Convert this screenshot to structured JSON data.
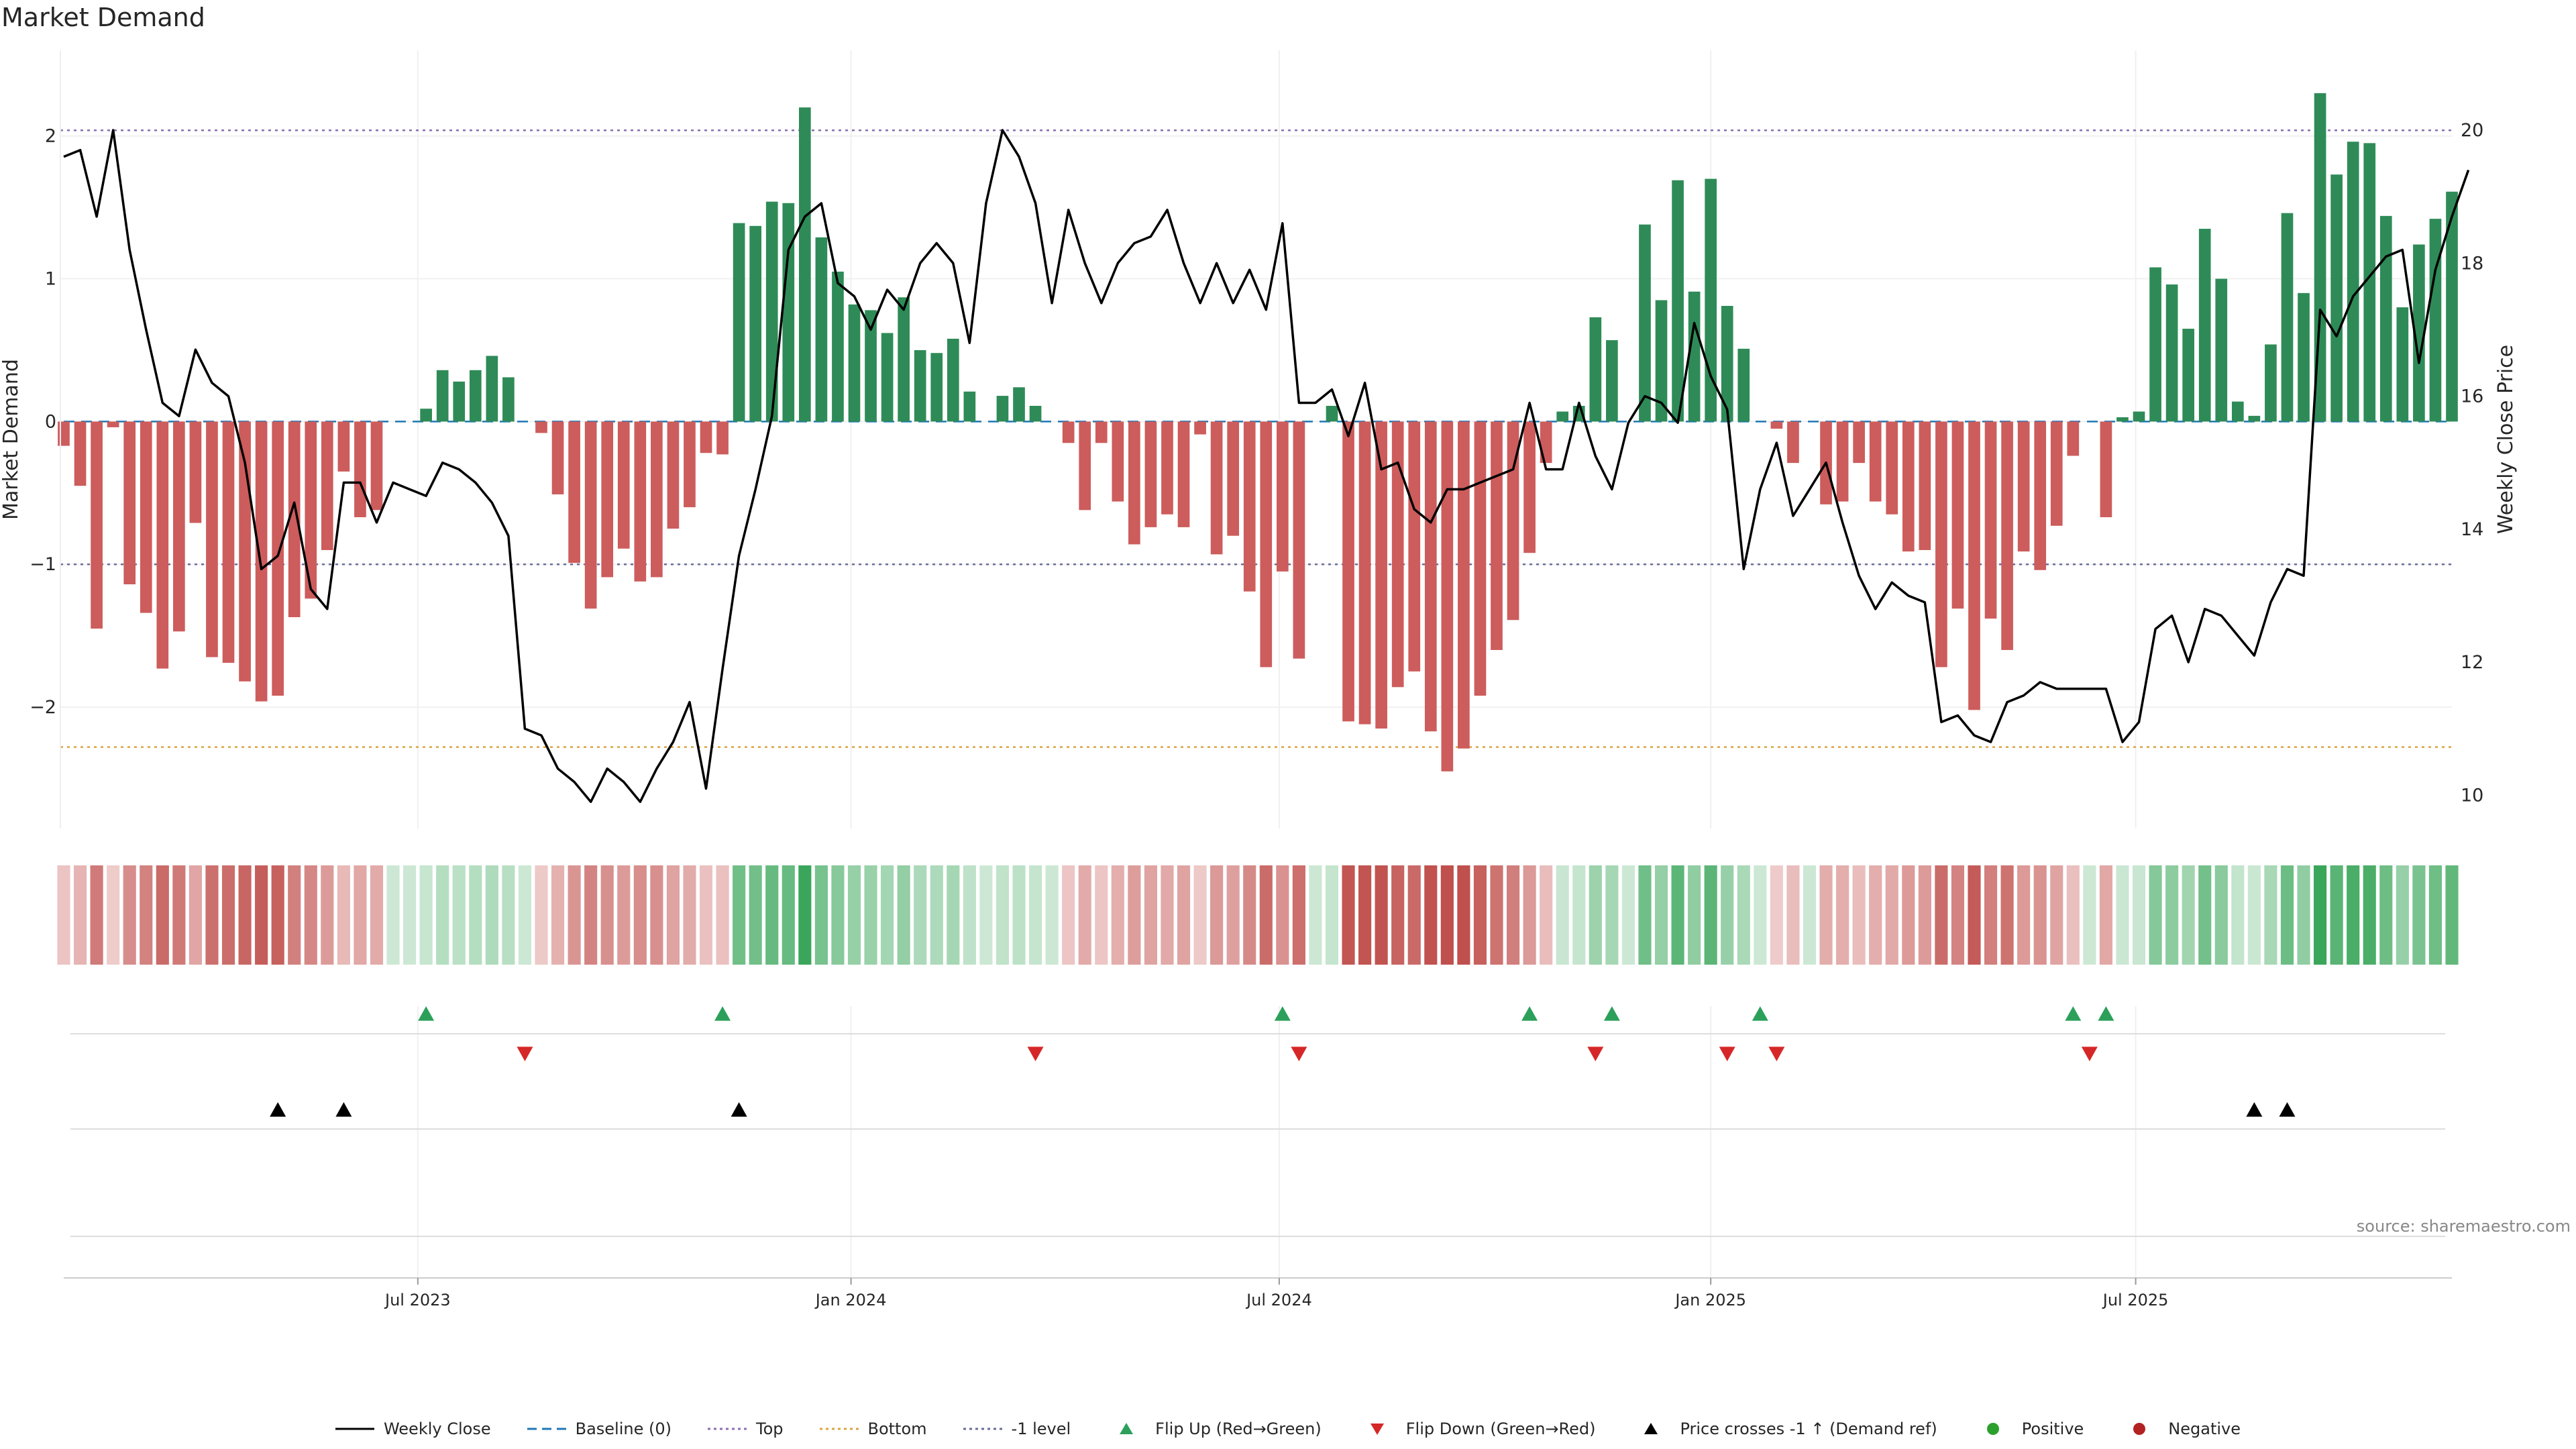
{
  "chart_data": {
    "type": "bar",
    "title": "Market Demand",
    "ylabel": "Market Demand",
    "y2label": "Weekly Close Price",
    "ylim": [
      -2.85,
      2.6
    ],
    "y2lim": [
      9.5,
      21.2
    ],
    "yticks": [
      -2,
      -1,
      0,
      1,
      2
    ],
    "yticklabels": [
      "−2",
      "−1",
      "0",
      "1",
      "2"
    ],
    "y2ticks": [
      10,
      12,
      14,
      16,
      18,
      20
    ],
    "xticks": [
      {
        "index": 21.5,
        "label": "Jul 2023"
      },
      {
        "index": 47.8,
        "label": "Jan 2024"
      },
      {
        "index": 73.8,
        "label": "Jul 2024"
      },
      {
        "index": 100.0,
        "label": "Jan 2025"
      },
      {
        "index": 125.8,
        "label": "Jul 2025"
      }
    ],
    "reference_lines": {
      "top": 2.04,
      "bottom": -2.28,
      "minus_one": -1.0,
      "baseline": 0
    },
    "colors": {
      "positive_bar": "#2e8b57",
      "negative_bar": "#cd5c5c",
      "price_line": "#000000",
      "top_line": "#8a6fb0",
      "bottom_line": "#d9a441",
      "minus_one_line": "#6b6b9a",
      "baseline": "#1f77b4",
      "flip_up": "#2ca05a",
      "flip_down": "#d62728",
      "cross_marker": "#000000",
      "positive_dot": "#2ca02c",
      "negative_dot": "#b22222"
    },
    "demand": [
      -0.17,
      -0.45,
      -1.45,
      -0.04,
      -1.14,
      -1.34,
      -1.73,
      -1.47,
      -0.71,
      -1.65,
      -1.69,
      -1.82,
      -1.96,
      -1.92,
      -1.37,
      -1.24,
      -0.9,
      -0.35,
      -0.67,
      -0.62,
      0.0,
      0.0,
      0.09,
      0.36,
      0.28,
      0.36,
      0.46,
      0.31,
      0.0,
      -0.08,
      -0.51,
      -0.99,
      -1.31,
      -1.09,
      -0.89,
      -1.12,
      -1.09,
      -0.75,
      -0.6,
      -0.22,
      -0.23,
      1.39,
      1.37,
      1.54,
      1.53,
      2.2,
      1.29,
      1.05,
      0.82,
      0.78,
      0.62,
      0.87,
      0.5,
      0.48,
      0.58,
      0.21,
      0.0,
      0.18,
      0.24,
      0.11,
      0.0,
      -0.15,
      -0.62,
      -0.15,
      -0.56,
      -0.86,
      -0.74,
      -0.65,
      -0.74,
      -0.09,
      -0.93,
      -0.8,
      -1.19,
      -1.72,
      -1.05,
      -1.66,
      0.0,
      0.11,
      -2.1,
      -2.12,
      -2.15,
      -1.86,
      -1.75,
      -2.17,
      -2.45,
      -2.29,
      -1.92,
      -1.6,
      -1.39,
      -0.92,
      -0.29,
      0.07,
      0.11,
      0.73,
      0.57,
      0.0,
      1.38,
      0.85,
      1.69,
      0.91,
      1.7,
      0.81,
      0.51,
      0.0,
      -0.05,
      -0.29,
      0.0,
      -0.58,
      -0.56,
      -0.29,
      -0.56,
      -0.65,
      -0.91,
      -0.9,
      -1.72,
      -1.31,
      -2.02,
      -1.38,
      -1.6,
      -0.91,
      -1.04,
      -0.73,
      -0.24,
      0.0,
      -0.67,
      0.03,
      0.07,
      1.08,
      0.96,
      0.65,
      1.35,
      1.0,
      0.14,
      0.04,
      0.54,
      1.46,
      0.9,
      2.3,
      1.73,
      1.96,
      1.95,
      1.44,
      0.8,
      1.24,
      1.42,
      1.61
    ],
    "price": [
      19.6,
      19.7,
      18.7,
      20.0,
      18.2,
      17.0,
      15.9,
      15.7,
      16.7,
      16.2,
      16.0,
      15.0,
      13.4,
      13.6,
      14.4,
      13.1,
      12.8,
      14.7,
      14.7,
      14.1,
      14.7,
      14.6,
      14.5,
      15.0,
      14.9,
      14.7,
      14.4,
      13.9,
      11.0,
      10.9,
      10.4,
      10.2,
      9.9,
      10.4,
      10.2,
      9.9,
      10.4,
      10.8,
      11.4,
      10.1,
      11.9,
      13.6,
      14.6,
      15.7,
      18.2,
      18.7,
      18.9,
      17.7,
      17.5,
      17.0,
      17.6,
      17.3,
      18.0,
      18.3,
      18.0,
      16.8,
      18.9,
      20.0,
      19.6,
      18.9,
      17.4,
      18.8,
      18.0,
      17.4,
      18.0,
      18.3,
      18.4,
      18.8,
      18.0,
      17.4,
      18.0,
      17.4,
      17.9,
      17.3,
      18.6,
      15.9,
      15.9,
      16.1,
      15.4,
      16.2,
      14.9,
      15.0,
      14.3,
      14.1,
      14.6,
      14.6,
      14.7,
      14.8,
      14.9,
      15.9,
      14.9,
      14.9,
      15.9,
      15.1,
      14.6,
      15.6,
      16.0,
      15.9,
      15.6,
      17.1,
      16.3,
      15.8,
      13.4,
      14.6,
      15.3,
      14.2,
      14.6,
      15.0,
      14.1,
      13.3,
      12.8,
      13.2,
      13.0,
      12.9,
      11.1,
      11.2,
      10.9,
      10.8,
      11.4,
      11.5,
      11.7,
      11.6,
      11.6,
      11.6,
      11.6,
      10.8,
      11.1,
      12.5,
      12.7,
      12.0,
      12.8,
      12.7,
      12.4,
      12.1,
      12.9,
      13.4,
      13.3,
      17.3,
      16.9,
      17.5,
      17.8,
      18.1,
      18.2,
      16.5,
      17.9,
      18.7,
      19.4
    ],
    "flip_up": [
      22,
      40,
      74,
      89,
      94,
      103,
      122,
      124
    ],
    "flip_down": [
      28,
      59,
      75,
      93,
      101,
      104,
      123
    ],
    "price_cross": [
      13,
      17,
      41,
      133,
      135
    ],
    "legend": [
      {
        "label": "Weekly Close",
        "kind": "line"
      },
      {
        "label": "Baseline (0)",
        "kind": "dashed"
      },
      {
        "label": "Top",
        "kind": "dotted-purple"
      },
      {
        "label": "Bottom",
        "kind": "dotted-orange"
      },
      {
        "label": "-1 level",
        "kind": "dotted-grey"
      },
      {
        "label": "Flip Up (Red→Green)",
        "kind": "tri-up-green"
      },
      {
        "label": "Flip Down (Green→Red)",
        "kind": "tri-down-red"
      },
      {
        "label": "Price crosses -1 ↑ (Demand ref)",
        "kind": "tri-up-black"
      },
      {
        "label": "Positive",
        "kind": "dot-green"
      },
      {
        "label": "Negative",
        "kind": "dot-red"
      }
    ]
  },
  "source": "source: sharemaestro.com"
}
